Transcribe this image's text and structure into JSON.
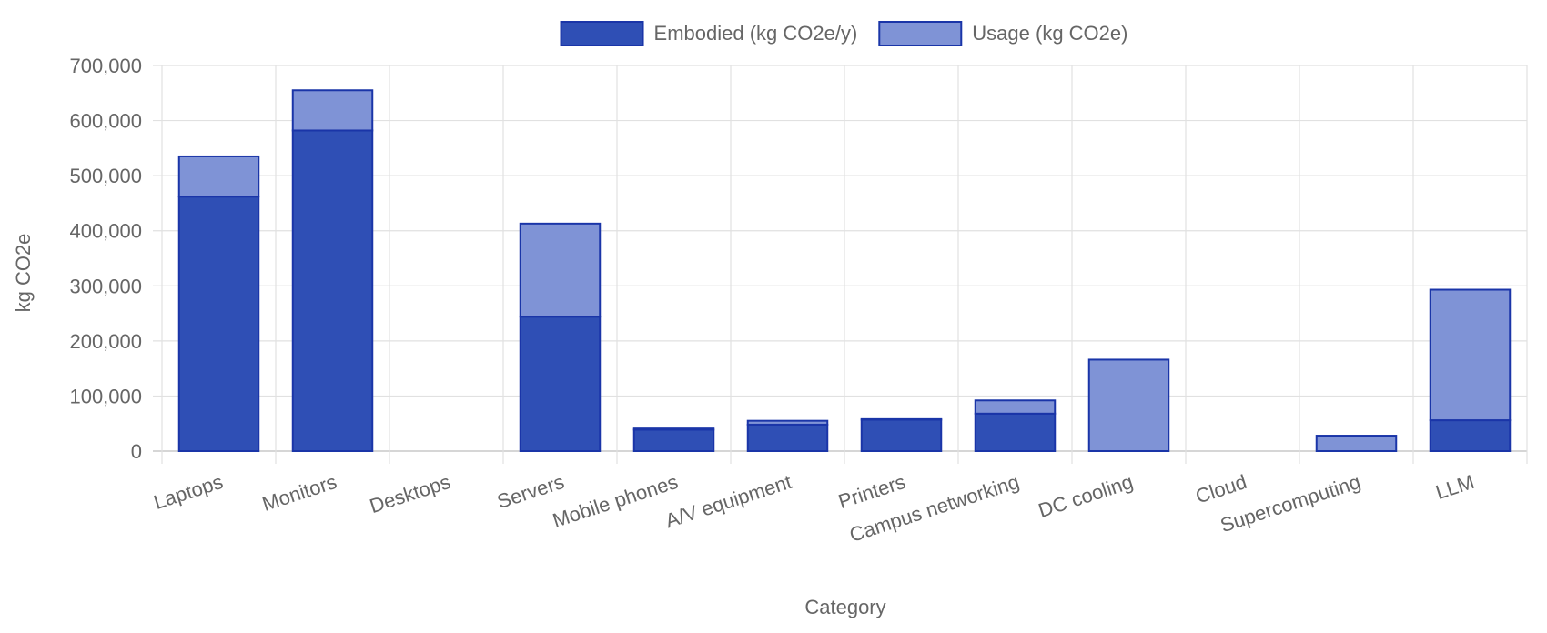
{
  "chart_data": {
    "type": "bar",
    "stacked": true,
    "categories": [
      "Laptops",
      "Monitors",
      "Desktops",
      "Servers",
      "Mobile phones",
      "A/V equipment",
      "Printers",
      "Campus networking",
      "DC cooling",
      "Cloud",
      "Supercomputing",
      "LLM"
    ],
    "series": [
      {
        "name": "Embodied (kg CO2e/y)",
        "color": "#2f4fb5",
        "values": [
          462000,
          582000,
          0,
          244000,
          39000,
          48000,
          57000,
          68000,
          0,
          0,
          0,
          56000
        ]
      },
      {
        "name": "Usage (kg CO2e)",
        "color": "#7f93d6",
        "values": [
          73000,
          73000,
          0,
          169000,
          2000,
          7000,
          1000,
          24000,
          166000,
          0,
          28000,
          237000
        ]
      }
    ],
    "xlabel": "Category",
    "ylabel": "kg CO2e",
    "ylim": [
      0,
      700000
    ],
    "yticks": [
      0,
      100000,
      200000,
      300000,
      400000,
      500000,
      600000,
      700000
    ],
    "ytick_labels": [
      "0",
      "100,000",
      "200,000",
      "300,000",
      "400,000",
      "500,000",
      "600,000",
      "700,000"
    ],
    "grid": true,
    "legend_position": "top-center",
    "border_color": "#1a35a8"
  }
}
